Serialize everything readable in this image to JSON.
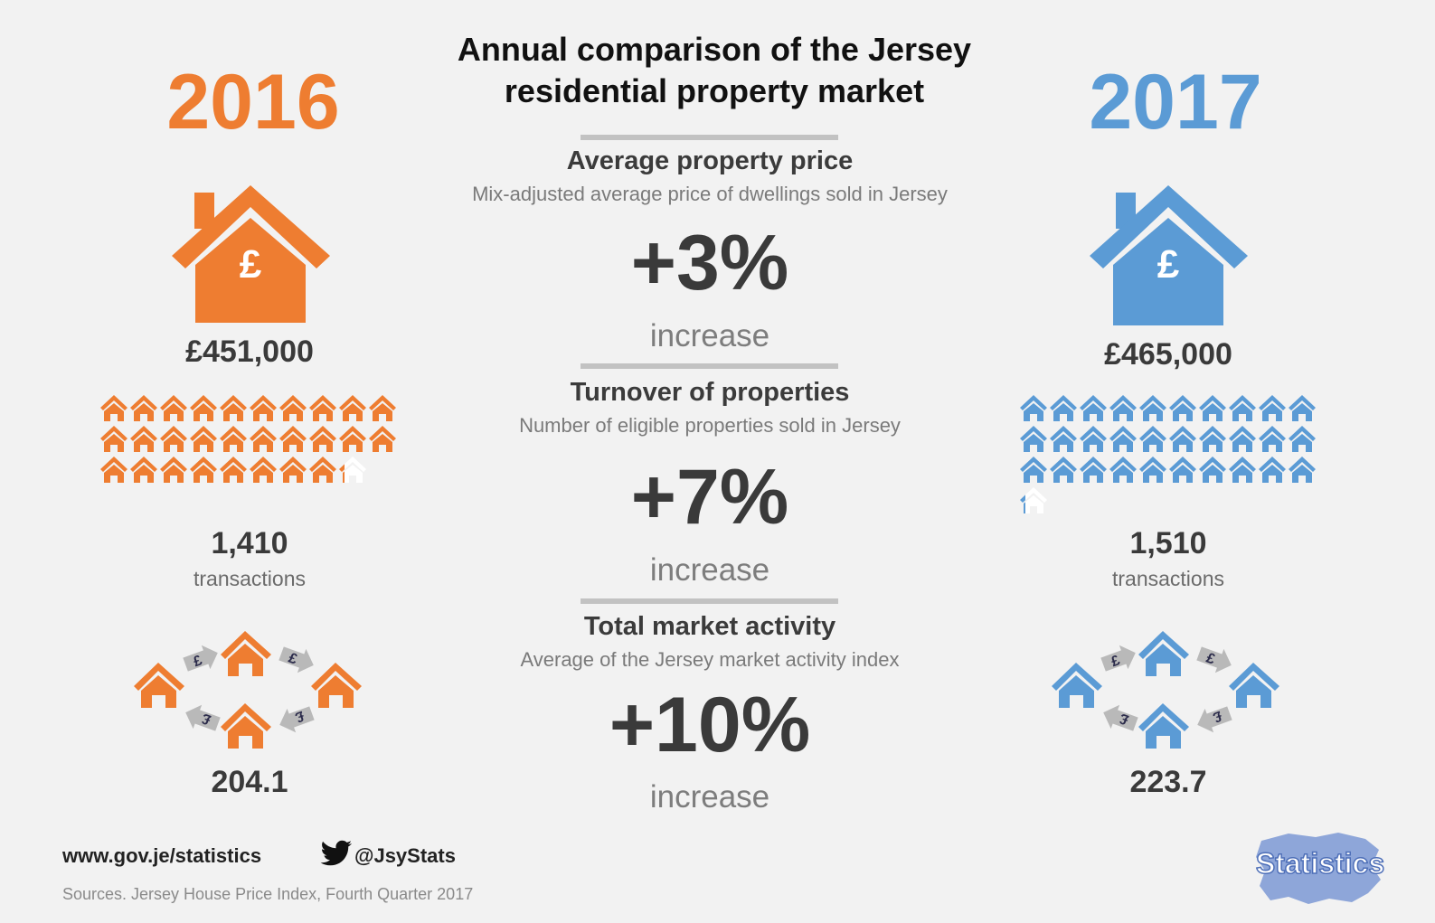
{
  "title_line1": "Annual comparison of the Jersey",
  "title_line2": "residential property market",
  "years": {
    "left": "2016",
    "right": "2017"
  },
  "colors": {
    "y2016": "#ee7d31",
    "y2017": "#5b9bd5",
    "text": "#3a3a3a",
    "muted": "#7a7a7a",
    "rule": "#c2c2c2"
  },
  "icons": {
    "big_house": "house-pound-icon",
    "small_house": "house-icon",
    "pound_arrow": "pound-arrow-icon",
    "twitter": "twitter-bird-icon",
    "logo": "statistics-jersey-map-logo"
  },
  "price": {
    "title": "Average property price",
    "subtitle": "Mix-adjusted average price of dwellings sold in Jersey",
    "change": "+3%",
    "change_label": "increase",
    "left_value": "£451,000",
    "right_value": "£465,000",
    "house_symbol": "£"
  },
  "turnover": {
    "title": "Turnover of properties",
    "subtitle": "Number of eligible properties sold in Jersey",
    "change": "+7%",
    "change_label": "increase",
    "left_value": "1,410",
    "left_unit": "transactions",
    "right_value": "1,510",
    "right_unit": "transactions",
    "left_icon_count": 28.2,
    "right_icon_count": 30.2
  },
  "activity": {
    "title": "Total market activity",
    "subtitle": "Average of the Jersey market activity index",
    "change": "+10%",
    "change_label": "increase",
    "left_value": "204.1",
    "right_value": "223.7",
    "arrow_symbol": "£"
  },
  "footer": {
    "website": "www.gov.je/statistics",
    "twitter": "@JsyStats",
    "sources": "Sources. Jersey House Price Index, Fourth Quarter 2017",
    "logo_text": "Statistics"
  }
}
